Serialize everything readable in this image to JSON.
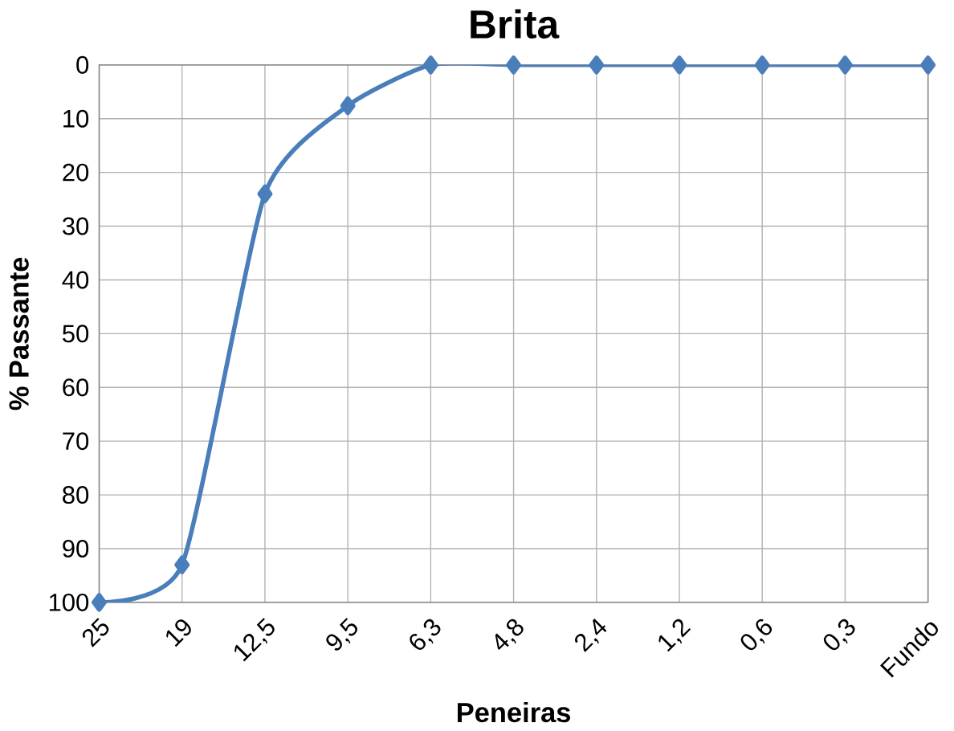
{
  "chart_data": {
    "type": "line",
    "title": "Brita",
    "xlabel": "Peneiras",
    "ylabel": "% Passante",
    "categories": [
      "25",
      "19",
      "12,5",
      "9,5",
      "6,3",
      "4,8",
      "2,4",
      "1,2",
      "0,6",
      "0,3",
      "Fundo"
    ],
    "series": [
      {
        "color": "#4a7ebb",
        "values": [
          100,
          93,
          24,
          7.6,
          0,
          0,
          0,
          0,
          0,
          0,
          0
        ]
      }
    ],
    "ylim": [
      100,
      0
    ],
    "yticks": [
      0,
      10,
      20,
      30,
      40,
      50,
      60,
      70,
      80,
      90,
      100
    ],
    "grid": true,
    "marker": "diamond",
    "line_style": "solid"
  }
}
